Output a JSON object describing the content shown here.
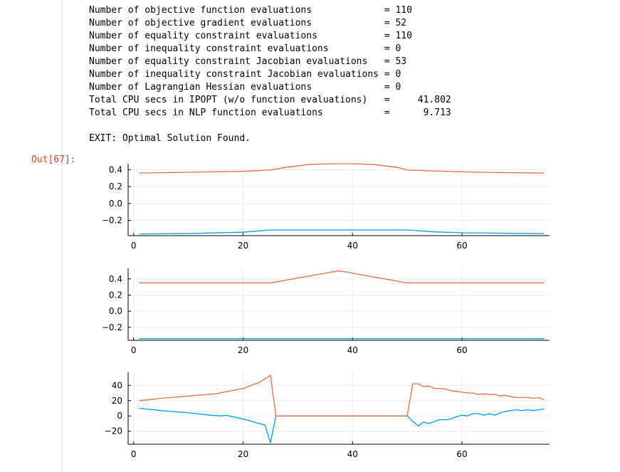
{
  "cell": {
    "out_prompt": "Out[67]:",
    "output_lines": [
      "Number of objective function evaluations             = 110",
      "Number of objective gradient evaluations             = 52",
      "Number of equality constraint evaluations            = 110",
      "Number of inequality constraint evaluations          = 0",
      "Number of equality constraint Jacobian evaluations   = 53",
      "Number of inequality constraint Jacobian evaluations = 0",
      "Number of Lagrangian Hessian evaluations             = 0",
      "Total CPU secs in IPOPT (w/o function evaluations)   =     41.802",
      "Total CPU secs in NLP function evaluations           =      9.713",
      "",
      "EXIT: Optimal Solution Found."
    ]
  },
  "colors": {
    "series_blue": "#009AFA",
    "series_orange": "#E26F46",
    "grid": "#ebebeb",
    "axis": "#000000",
    "gutter_border": "#e6e6e6",
    "prompt": "#d84315"
  },
  "chart_data": [
    {
      "type": "line",
      "xlim": [
        -1,
        76
      ],
      "ylim": [
        -0.38,
        0.47
      ],
      "x_ticks": [
        0,
        20,
        40,
        60
      ],
      "y_ticks": [
        -0.2,
        0.0,
        0.2,
        0.4
      ],
      "x_tick_labels": [
        "0",
        "20",
        "40",
        "60"
      ],
      "y_tick_labels": [
        "−0.2",
        "0.0",
        "0.2",
        "0.4"
      ],
      "grid": true,
      "legend": "none",
      "series": [
        {
          "color": "#009AFA",
          "x": [
            1,
            10,
            20,
            25,
            30,
            40,
            50,
            55,
            60,
            65,
            70,
            75
          ],
          "y": [
            -0.36,
            -0.355,
            -0.34,
            -0.313,
            -0.313,
            -0.313,
            -0.313,
            -0.335,
            -0.346,
            -0.35,
            -0.353,
            -0.356
          ]
        },
        {
          "color": "#E26F46",
          "x": [
            1,
            10,
            20,
            25,
            28,
            32,
            36,
            40,
            44,
            48,
            50,
            55,
            60,
            65,
            70,
            75
          ],
          "y": [
            0.36,
            0.37,
            0.38,
            0.395,
            0.43,
            0.46,
            0.47,
            0.47,
            0.46,
            0.43,
            0.395,
            0.385,
            0.375,
            0.368,
            0.363,
            0.36
          ]
        }
      ]
    },
    {
      "type": "line",
      "xlim": [
        -1,
        76
      ],
      "ylim": [
        -0.36,
        0.53
      ],
      "x_ticks": [
        0,
        20,
        40,
        60
      ],
      "y_ticks": [
        -0.2,
        0.0,
        0.2,
        0.4
      ],
      "x_tick_labels": [
        "0",
        "20",
        "40",
        "60"
      ],
      "y_tick_labels": [
        "−0.2",
        "0.0",
        "0.2",
        "0.4"
      ],
      "grid": true,
      "legend": "none",
      "series": [
        {
          "color": "#009AFA",
          "x": [
            1,
            75
          ],
          "y": [
            -0.34,
            -0.34
          ]
        },
        {
          "color": "#E26F46",
          "x": [
            1,
            25,
            37.5,
            50,
            75
          ],
          "y": [
            0.35,
            0.35,
            0.5,
            0.35,
            0.35
          ]
        }
      ]
    },
    {
      "type": "line",
      "xlim": [
        -1,
        76
      ],
      "ylim": [
        -37,
        57
      ],
      "x_ticks": [
        0,
        20,
        40,
        60
      ],
      "y_ticks": [
        -20,
        0,
        20,
        40
      ],
      "x_tick_labels": [
        "0",
        "20",
        "40",
        "60"
      ],
      "y_tick_labels": [
        "−20",
        "0",
        "20",
        "40"
      ],
      "grid": true,
      "legend": "none",
      "series": [
        {
          "color": "#009AFA",
          "x": [
            1,
            5,
            10,
            14,
            15,
            16,
            17,
            18,
            20,
            24,
            25,
            26,
            50,
            51,
            52,
            53,
            54,
            55,
            56,
            57,
            58,
            59,
            60,
            61,
            62,
            63,
            64,
            65,
            66,
            67,
            68,
            69,
            70,
            71,
            72,
            73,
            74,
            75
          ],
          "y": [
            10,
            7,
            4,
            1,
            0.5,
            0,
            0.8,
            -1,
            -4,
            -12,
            -35,
            0,
            0,
            -7,
            -13,
            -8,
            -10,
            -7,
            -5,
            -5,
            -4,
            -1,
            1,
            0,
            3,
            3,
            1,
            3,
            1,
            4,
            6,
            7,
            8,
            7,
            8,
            7,
            8,
            9
          ]
        },
        {
          "color": "#E26F46",
          "x": [
            1,
            5,
            10,
            15,
            20,
            23,
            25,
            26,
            50,
            51,
            52,
            53,
            54,
            55,
            56,
            57,
            58,
            59,
            60,
            61,
            62,
            63,
            64,
            65,
            66,
            67,
            68,
            69,
            70,
            71,
            72,
            73,
            74,
            75
          ],
          "y": [
            20,
            23,
            26,
            29,
            36,
            44,
            53,
            0,
            0,
            42,
            42,
            38,
            39,
            36,
            36,
            35,
            33,
            32,
            31,
            30,
            30,
            28,
            29,
            28,
            28,
            26,
            27,
            25,
            24,
            24,
            24,
            23,
            24,
            21
          ]
        }
      ]
    }
  ]
}
